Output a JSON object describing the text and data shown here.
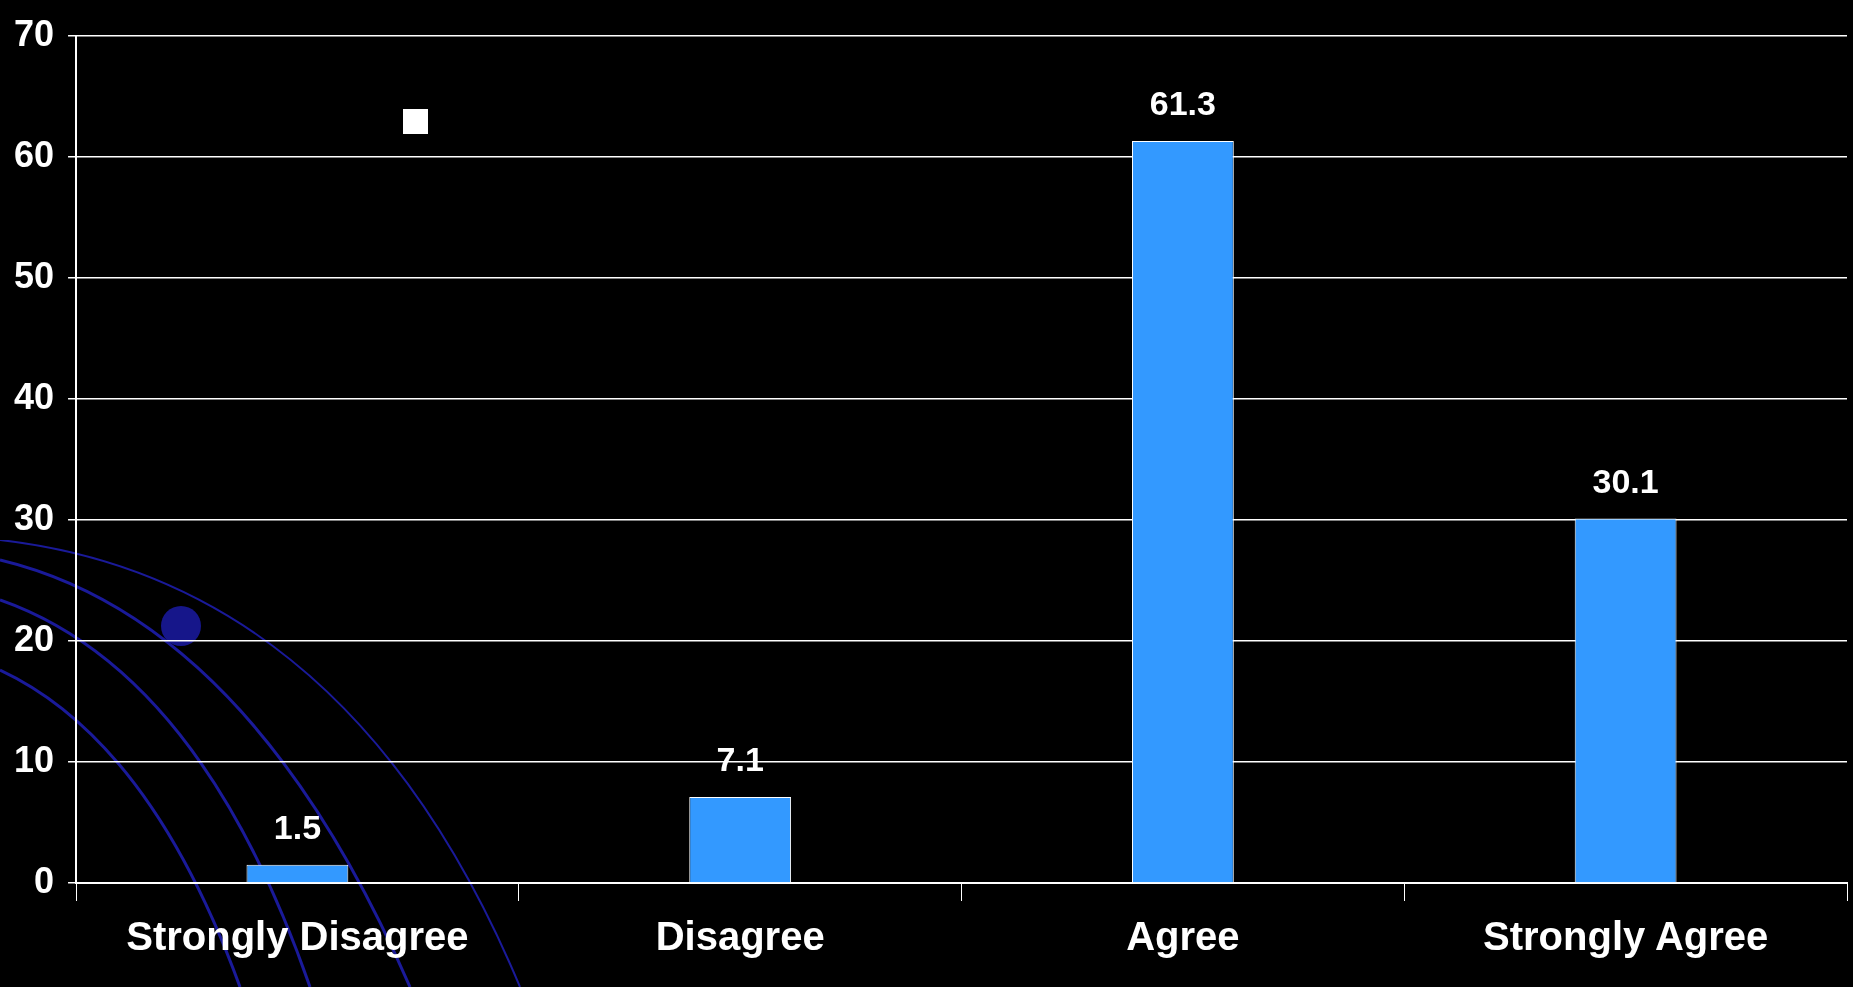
{
  "chart_data": {
    "type": "bar",
    "categories": [
      "Strongly Disagree",
      "Disagree",
      "Agree",
      "Strongly Agree"
    ],
    "values": [
      1.5,
      7.1,
      61.3,
      30.1
    ],
    "color": "#3399ff",
    "ylim": [
      0,
      70
    ],
    "yticks": [
      0,
      10,
      20,
      30,
      40,
      50,
      60,
      70
    ],
    "grid": "y",
    "data_labels": true
  }
}
